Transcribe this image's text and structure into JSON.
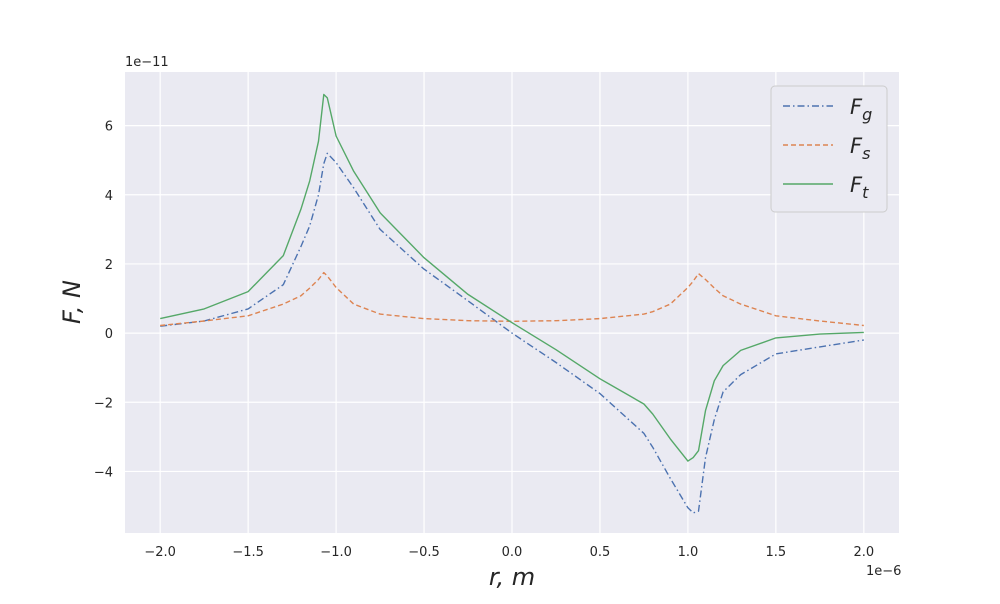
{
  "chart_data": {
    "type": "line",
    "xlabel": "r, m",
    "ylabel": "F, N",
    "x_offset_label": "1e−6",
    "y_offset_label": "1e−11",
    "xlim": [
      -2.2,
      2.2
    ],
    "ylim": [
      -5.78,
      7.55
    ],
    "x_ticks": [
      "-2.0",
      "-1.5",
      "-1.0",
      "-0.5",
      "0.0",
      "0.5",
      "1.0",
      "1.5",
      "2.0"
    ],
    "y_ticks": [
      "-4",
      "-2",
      "0",
      "2",
      "4",
      "6"
    ],
    "grid": true,
    "background": "#eaeaf2",
    "legend_placement": "top-right",
    "x": [
      -2,
      -1.75,
      -1.5,
      -1.3,
      -1.2,
      -1.15,
      -1.1,
      -1.07,
      -1.05,
      -1.0,
      -0.9,
      -0.75,
      -0.5,
      -0.25,
      0,
      0.25,
      0.5,
      0.75,
      0.8,
      0.9,
      1.0,
      1.03,
      1.06,
      1.1,
      1.15,
      1.2,
      1.3,
      1.5,
      1.75,
      2
    ],
    "series": [
      {
        "name": "F_g",
        "label_main": "F",
        "label_sub": "g",
        "color": "#4c72b0",
        "style": "dashdot",
        "values": [
          0.2,
          0.35,
          0.7,
          1.4,
          2.5,
          3.1,
          4.0,
          4.9,
          5.2,
          4.93,
          4.2,
          3.0,
          1.85,
          0.93,
          0,
          -0.85,
          -1.75,
          -2.9,
          -3.3,
          -4.2,
          -5.05,
          -5.2,
          -5.15,
          -3.6,
          -2.5,
          -1.7,
          -1.2,
          -0.6,
          -0.4,
          -0.2
        ]
      },
      {
        "name": "F_s",
        "label_main": "F",
        "label_sub": "s",
        "color": "#dd8452",
        "style": "dashed",
        "values": [
          0.22,
          0.35,
          0.5,
          0.84,
          1.08,
          1.3,
          1.55,
          1.75,
          1.65,
          1.32,
          0.84,
          0.55,
          0.42,
          0.36,
          0.34,
          0.36,
          0.42,
          0.55,
          0.62,
          0.84,
          1.32,
          1.5,
          1.72,
          1.55,
          1.3,
          1.08,
          0.84,
          0.5,
          0.35,
          0.22
        ]
      },
      {
        "name": "F_t",
        "label_main": "F",
        "label_sub": "t",
        "color": "#55a868",
        "style": "solid",
        "values": [
          0.42,
          0.7,
          1.2,
          2.24,
          3.58,
          4.4,
          5.55,
          6.9,
          6.8,
          5.7,
          4.68,
          3.48,
          2.18,
          1.12,
          0.3,
          -0.48,
          -1.32,
          -2.05,
          -2.34,
          -3.06,
          -3.7,
          -3.6,
          -3.4,
          -2.24,
          -1.38,
          -0.94,
          -0.5,
          -0.14,
          -0.03,
          0.02
        ]
      }
    ]
  }
}
